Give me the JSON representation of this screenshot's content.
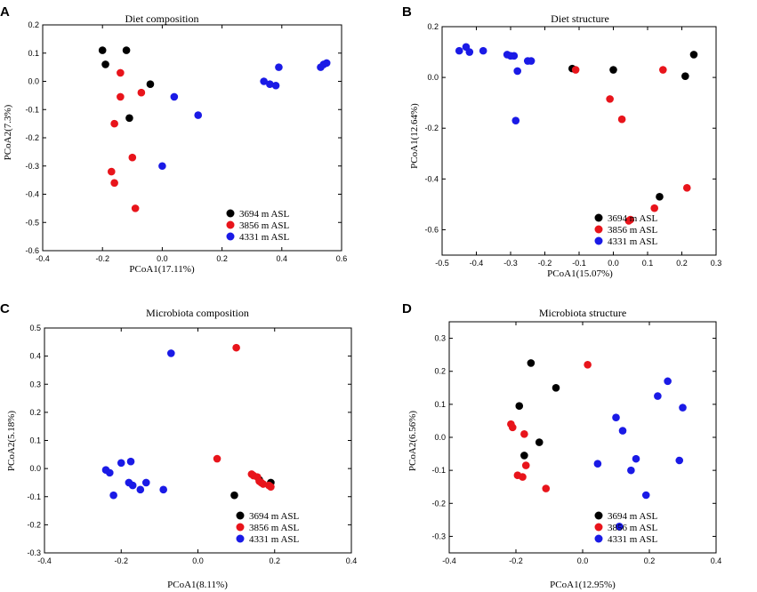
{
  "colors": {
    "g1": "#000000",
    "g2": "#e8141b",
    "g3": "#1a1ae6"
  },
  "chart_data": [
    {
      "type": "scatter",
      "panel": "A",
      "title": "Diet composition",
      "xlabel": "PCoA1(17.11%)",
      "ylabel": "PCoA2(7.3%)",
      "xlim": [
        -0.4,
        0.6
      ],
      "ylim": [
        -0.6,
        0.2
      ],
      "xticks": [
        "-0.4",
        "-0.2",
        "0.0",
        "0.2",
        "0.4",
        "0.6"
      ],
      "yticks": [
        "0.2",
        "0.1",
        "0.0",
        "-0.1",
        "-0.2",
        "-0.3",
        "-0.4",
        "-0.5",
        "-0.6"
      ],
      "legend_position": "bottom-right",
      "series": [
        {
          "name": "3694 m ASL",
          "color": "g1",
          "x": [
            -0.2,
            -0.19,
            -0.12,
            -0.04,
            -0.11
          ],
          "y": [
            0.11,
            0.06,
            0.11,
            -0.01,
            -0.13
          ]
        },
        {
          "name": "3856 m ASL",
          "color": "g2",
          "x": [
            -0.14,
            -0.07,
            -0.14,
            -0.16,
            -0.1,
            -0.17,
            -0.16,
            -0.09
          ],
          "y": [
            0.03,
            -0.04,
            -0.055,
            -0.15,
            -0.27,
            -0.32,
            -0.36,
            -0.45
          ]
        },
        {
          "name": "4331 m ASL",
          "color": "g3",
          "x": [
            0.39,
            0.34,
            0.36,
            0.38,
            0.53,
            0.54,
            0.55,
            0.04,
            0.12,
            0.0
          ],
          "y": [
            0.05,
            0.0,
            -0.01,
            -0.015,
            0.05,
            0.06,
            0.065,
            -0.055,
            -0.12,
            -0.3
          ]
        }
      ]
    },
    {
      "type": "scatter",
      "panel": "B",
      "title": "Diet structure",
      "xlabel": "PCoA1(15.07%)",
      "ylabel": "PCoA1(12.64%)",
      "xlim": [
        -0.5,
        0.3
      ],
      "ylim": [
        -0.7,
        0.2
      ],
      "xticks": [
        "-0.5",
        "-0.4",
        "-0.3",
        "-0.2",
        "-0.1",
        "0.0",
        "0.1",
        "0.2",
        "0.3"
      ],
      "yticks": [
        "0.2",
        "0.0",
        "-0.2",
        "-0.4",
        "-0.6"
      ],
      "legend_position": "bottom-right",
      "series": [
        {
          "name": "3694 m ASL",
          "color": "g1",
          "x": [
            -0.12,
            0.0,
            0.21,
            0.235,
            0.135
          ],
          "y": [
            0.035,
            0.03,
            0.005,
            0.09,
            -0.47
          ]
        },
        {
          "name": "3856 m ASL",
          "color": "g2",
          "x": [
            -0.11,
            0.145,
            -0.01,
            0.025,
            0.215,
            0.12,
            0.05,
            0.045
          ],
          "y": [
            0.03,
            0.03,
            -0.085,
            -0.165,
            -0.435,
            -0.515,
            -0.56,
            -0.565
          ]
        },
        {
          "name": "4331 m ASL",
          "color": "g3",
          "x": [
            -0.45,
            -0.43,
            -0.42,
            -0.38,
            -0.31,
            -0.3,
            -0.29,
            -0.25,
            -0.24,
            -0.28,
            -0.285
          ],
          "y": [
            0.105,
            0.12,
            0.1,
            0.105,
            0.09,
            0.085,
            0.085,
            0.065,
            0.065,
            0.025,
            -0.17
          ]
        }
      ]
    },
    {
      "type": "scatter",
      "panel": "C",
      "title": "Microbiota composition",
      "xlabel": "PCoA1(8.11%)",
      "ylabel": "PCoA2(5.18%)",
      "xlim": [
        -0.4,
        0.4
      ],
      "ylim": [
        -0.3,
        0.5
      ],
      "xticks": [
        "-0.4",
        "-0.2",
        "0.0",
        "0.2",
        "0.4"
      ],
      "yticks": [
        "0.5",
        "0.4",
        "0.3",
        "0.2",
        "0.1",
        "0.0",
        "-0.1",
        "-0.2",
        "-0.3"
      ],
      "legend_position": "bottom-right",
      "series": [
        {
          "name": "3694 m ASL",
          "color": "g1",
          "x": [
            0.095,
            0.19,
            0.16
          ],
          "y": [
            -0.095,
            -0.05,
            -0.04
          ]
        },
        {
          "name": "3856 m ASL",
          "color": "g2",
          "x": [
            0.1,
            0.05,
            0.14,
            0.155,
            0.16,
            0.17,
            0.185,
            0.19,
            0.145,
            0.165
          ],
          "y": [
            0.43,
            0.035,
            -0.02,
            -0.03,
            -0.045,
            -0.055,
            -0.06,
            -0.065,
            -0.025,
            -0.05
          ]
        },
        {
          "name": "4331 m ASL",
          "color": "g3",
          "x": [
            -0.07,
            -0.24,
            -0.23,
            -0.2,
            -0.175,
            -0.18,
            -0.17,
            -0.135,
            -0.15,
            -0.09,
            -0.22
          ],
          "y": [
            0.41,
            -0.005,
            -0.015,
            0.02,
            0.025,
            -0.05,
            -0.06,
            -0.05,
            -0.075,
            -0.075,
            -0.095
          ]
        }
      ]
    },
    {
      "type": "scatter",
      "panel": "D",
      "title": "Microbiota structure",
      "xlabel": "PCoA1(12.95%)",
      "ylabel": "PCoA2(6.56%)",
      "xlim": [
        -0.4,
        0.4
      ],
      "ylim": [
        -0.35,
        0.35
      ],
      "xticks": [
        "-0.4",
        "-0.2",
        "0.0",
        "0.2",
        "0.4"
      ],
      "yticks": [
        "0.3",
        "0.2",
        "0.1",
        "0.0",
        "-0.1",
        "-0.2",
        "-0.3"
      ],
      "legend_position": "bottom-right",
      "series": [
        {
          "name": "3694 m ASL",
          "color": "g1",
          "x": [
            -0.155,
            -0.08,
            -0.19,
            -0.13,
            -0.175
          ],
          "y": [
            0.225,
            0.15,
            0.095,
            -0.015,
            -0.055
          ]
        },
        {
          "name": "3856 m ASL",
          "color": "g2",
          "x": [
            0.015,
            -0.215,
            -0.21,
            -0.175,
            -0.17,
            -0.195,
            -0.18,
            -0.11
          ],
          "y": [
            0.22,
            0.04,
            0.03,
            0.01,
            -0.085,
            -0.115,
            -0.12,
            -0.155
          ]
        },
        {
          "name": "4331 m ASL",
          "color": "g3",
          "x": [
            0.255,
            0.225,
            0.3,
            0.1,
            0.12,
            0.045,
            0.16,
            0.145,
            0.29,
            0.19,
            0.11
          ],
          "y": [
            0.17,
            0.125,
            0.09,
            0.06,
            0.02,
            -0.08,
            -0.065,
            -0.1,
            -0.07,
            -0.175,
            -0.27
          ]
        }
      ]
    }
  ]
}
